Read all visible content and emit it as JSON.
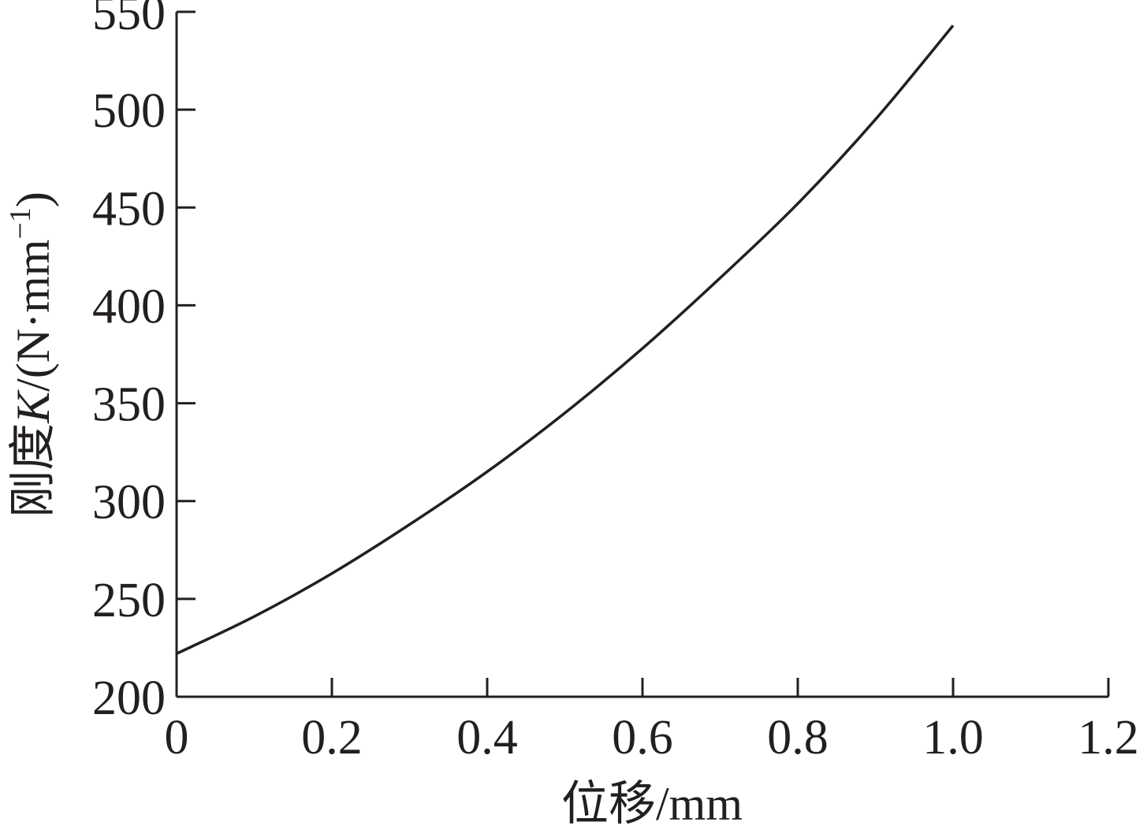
{
  "chart_data": {
    "type": "line",
    "title": "",
    "xlabel": "位移/mm",
    "ylabel": {
      "prefix": "刚度",
      "symbol": "K",
      "unit_start": "/(N·mm",
      "unit_exp": "−1",
      "unit_end": ")"
    },
    "xlim": [
      0,
      1.2
    ],
    "ylim": [
      200,
      550
    ],
    "xticks": [
      0,
      0.2,
      0.4,
      0.6,
      0.8,
      1.0,
      1.2
    ],
    "xtick_labels": [
      "0",
      "0.2",
      "0.4",
      "0.6",
      "0.8",
      "1.0",
      "1.2"
    ],
    "yticks": [
      200,
      250,
      300,
      350,
      400,
      450,
      500,
      550
    ],
    "ytick_labels": [
      "200",
      "250",
      "300",
      "350",
      "400",
      "450",
      "500",
      "550"
    ],
    "grid": false,
    "legend": "none",
    "series": [
      {
        "x": [
          0,
          0.1,
          0.2,
          0.3,
          0.4,
          0.5,
          0.6,
          0.7,
          0.8,
          0.9,
          1.0
        ],
        "y": [
          222,
          241,
          263,
          288,
          315,
          345,
          378,
          414,
          452,
          495,
          543
        ]
      }
    ]
  }
}
